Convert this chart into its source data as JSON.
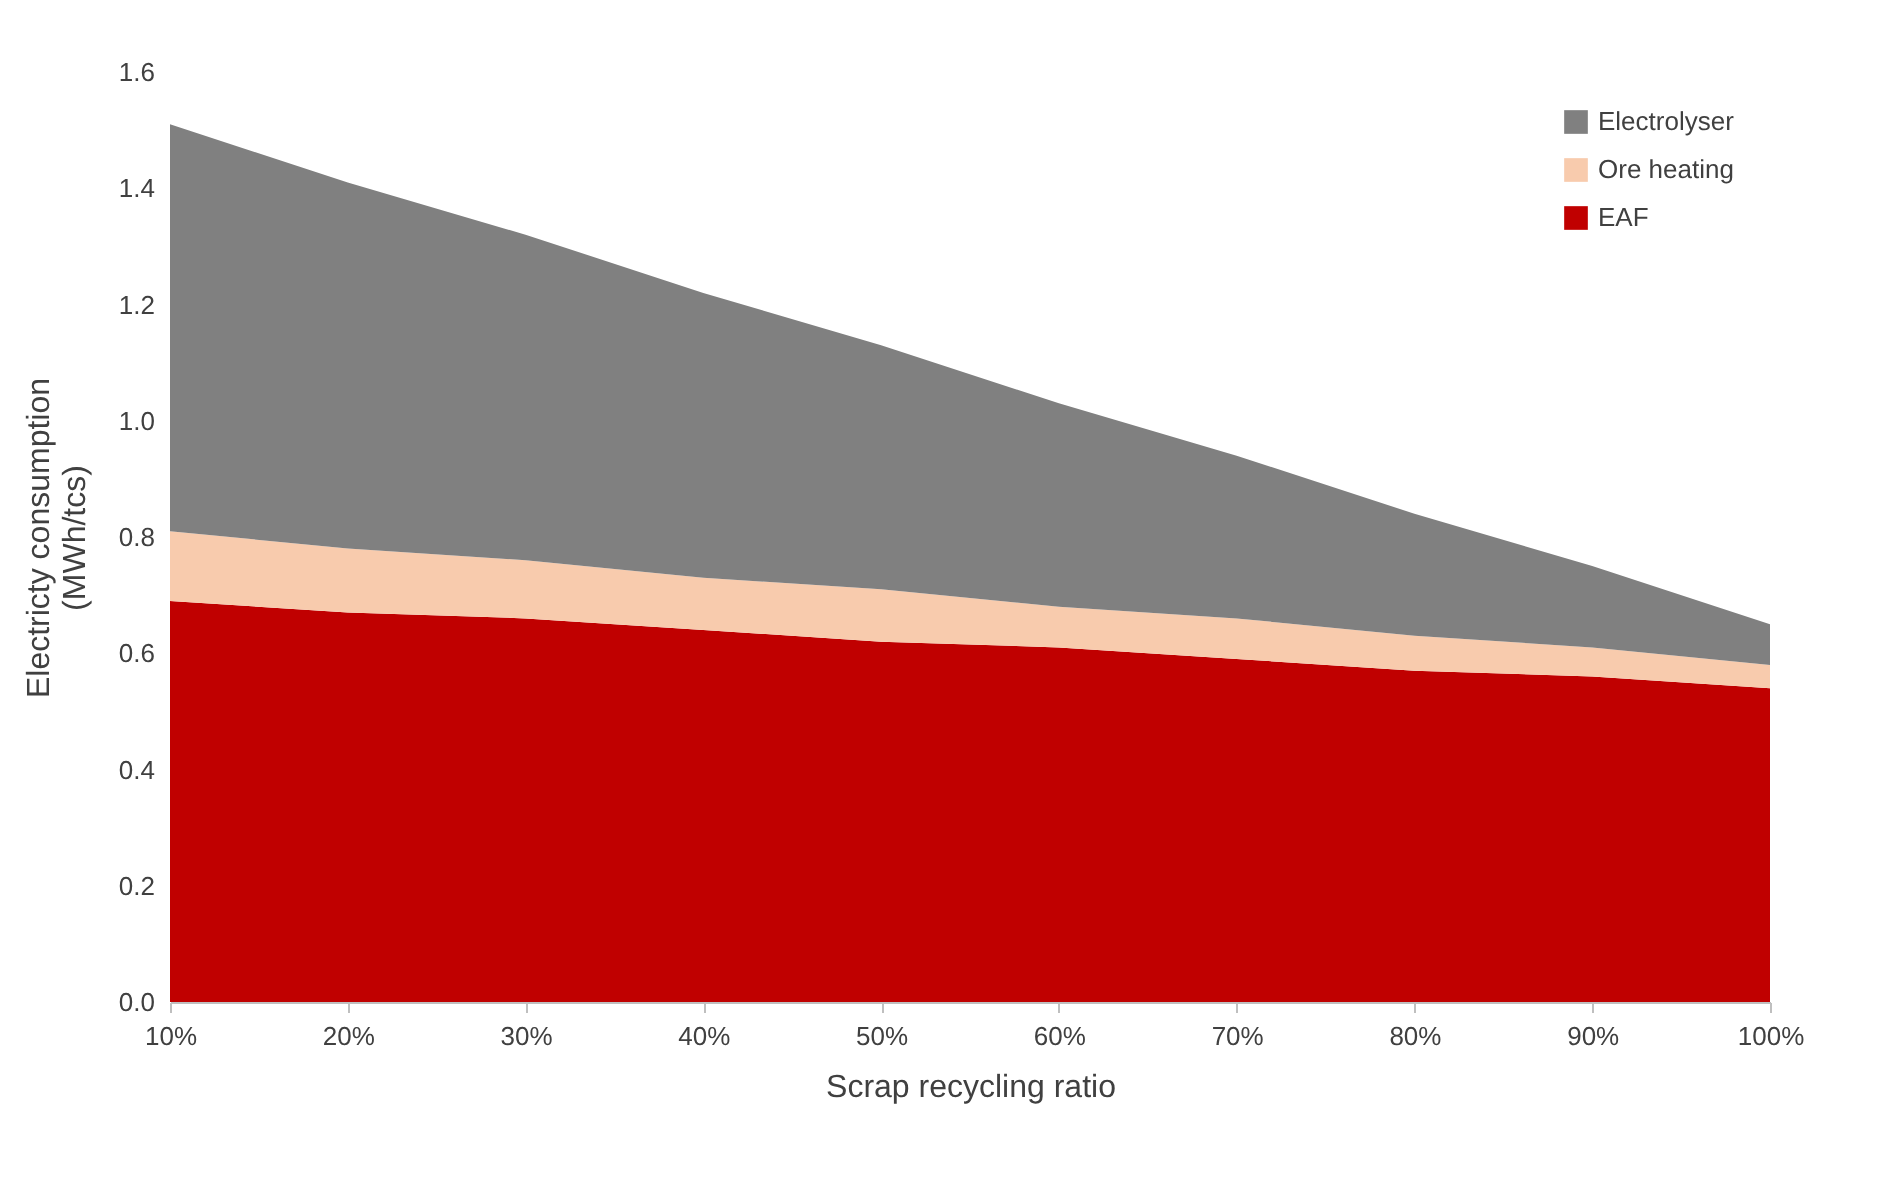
{
  "chart_data": {
    "type": "area",
    "stacked": true,
    "xlabel": "Scrap recycling ratio",
    "ylabel": "Electricty consumption (MWh/tcs)",
    "categories": [
      "10%",
      "20%",
      "30%",
      "40%",
      "50%",
      "60%",
      "70%",
      "80%",
      "90%",
      "100%"
    ],
    "series": [
      {
        "name": "EAF",
        "color": "#c00000",
        "values": [
          0.69,
          0.67,
          0.66,
          0.64,
          0.62,
          0.61,
          0.59,
          0.57,
          0.56,
          0.54
        ]
      },
      {
        "name": "Ore heating",
        "color": "#f8cbad",
        "values": [
          0.12,
          0.11,
          0.1,
          0.09,
          0.09,
          0.07,
          0.07,
          0.06,
          0.05,
          0.04
        ]
      },
      {
        "name": "Electrolyser",
        "color": "#808080",
        "values": [
          0.7,
          0.63,
          0.56,
          0.49,
          0.42,
          0.35,
          0.28,
          0.21,
          0.14,
          0.07
        ]
      }
    ],
    "ylim": [
      0,
      1.6
    ],
    "yticks": [
      {
        "value": 0,
        "label": "0.0"
      },
      {
        "value": 0.2,
        "label": "0.2"
      },
      {
        "value": 0.4,
        "label": "0.4"
      },
      {
        "value": 0.6,
        "label": "0.6"
      },
      {
        "value": 0.8,
        "label": "0.8"
      },
      {
        "value": 1,
        "label": "1.0"
      },
      {
        "value": 1.2,
        "label": "1.2"
      },
      {
        "value": 1.4,
        "label": "1.4"
      },
      {
        "value": 1.6,
        "label": "1.6"
      }
    ],
    "grid": false,
    "legend": "top right"
  }
}
